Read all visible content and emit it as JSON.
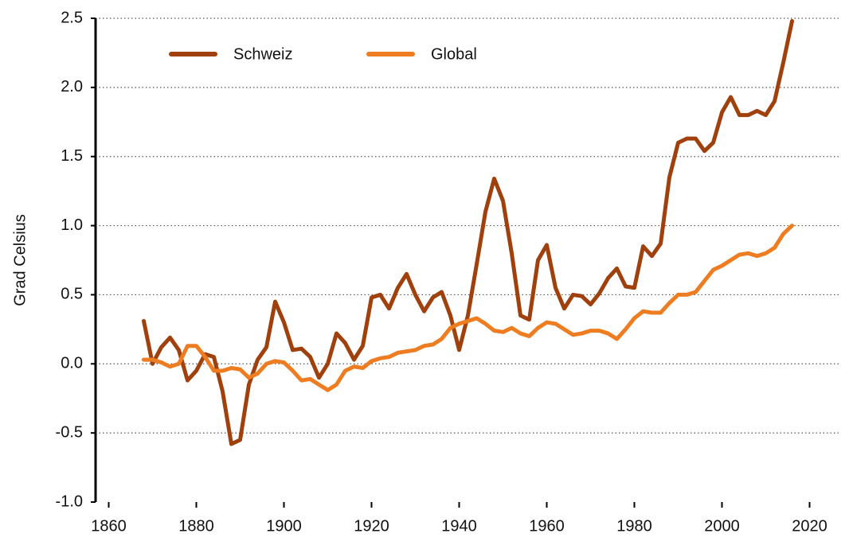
{
  "chart_data": {
    "type": "line",
    "ylabel": "Grad Celsius",
    "x": [
      1868,
      1870,
      1872,
      1874,
      1876,
      1878,
      1880,
      1882,
      1884,
      1886,
      1888,
      1890,
      1892,
      1894,
      1896,
      1898,
      1900,
      1902,
      1904,
      1906,
      1908,
      1910,
      1912,
      1914,
      1916,
      1918,
      1920,
      1922,
      1924,
      1926,
      1928,
      1930,
      1932,
      1934,
      1936,
      1938,
      1940,
      1942,
      1944,
      1946,
      1948,
      1950,
      1952,
      1954,
      1956,
      1958,
      1960,
      1962,
      1964,
      1966,
      1968,
      1970,
      1972,
      1974,
      1976,
      1978,
      1980,
      1982,
      1984,
      1986,
      1988,
      1990,
      1992,
      1994,
      1996,
      1998,
      2000,
      2002,
      2004,
      2006,
      2008,
      2010,
      2012,
      2014,
      2016
    ],
    "series": [
      {
        "name": "Schweiz",
        "color": "#a0410d",
        "values": [
          0.31,
          0.0,
          0.12,
          0.19,
          0.1,
          -0.12,
          -0.05,
          0.07,
          0.05,
          -0.2,
          -0.58,
          -0.55,
          -0.15,
          0.03,
          0.12,
          0.45,
          0.3,
          0.1,
          0.11,
          0.05,
          -0.1,
          0.0,
          0.22,
          0.15,
          0.03,
          0.13,
          0.48,
          0.5,
          0.4,
          0.55,
          0.65,
          0.5,
          0.38,
          0.48,
          0.52,
          0.35,
          0.1,
          0.35,
          0.72,
          1.1,
          1.34,
          1.18,
          0.8,
          0.35,
          0.32,
          0.75,
          0.86,
          0.55,
          0.4,
          0.5,
          0.49,
          0.43,
          0.51,
          0.62,
          0.69,
          0.56,
          0.55,
          0.85,
          0.78,
          0.87,
          1.35,
          1.6,
          1.63,
          1.63,
          1.54,
          1.6,
          1.82,
          1.93,
          1.8,
          1.8,
          1.83,
          1.8,
          1.9,
          2.18,
          2.48
        ]
      },
      {
        "name": "Global",
        "color": "#ee7d22",
        "values": [
          0.03,
          0.03,
          0.01,
          -0.02,
          0.0,
          0.13,
          0.13,
          0.05,
          -0.05,
          -0.05,
          -0.03,
          -0.04,
          -0.1,
          -0.07,
          0.0,
          0.02,
          0.01,
          -0.05,
          -0.12,
          -0.11,
          -0.15,
          -0.19,
          -0.15,
          -0.05,
          -0.02,
          -0.03,
          0.02,
          0.04,
          0.05,
          0.08,
          0.09,
          0.1,
          0.13,
          0.14,
          0.18,
          0.26,
          0.29,
          0.31,
          0.33,
          0.29,
          0.24,
          0.23,
          0.26,
          0.22,
          0.2,
          0.26,
          0.3,
          0.29,
          0.25,
          0.21,
          0.22,
          0.24,
          0.24,
          0.22,
          0.18,
          0.25,
          0.33,
          0.38,
          0.37,
          0.37,
          0.44,
          0.5,
          0.5,
          0.52,
          0.6,
          0.68,
          0.71,
          0.75,
          0.79,
          0.8,
          0.78,
          0.8,
          0.84,
          0.94,
          1.0
        ]
      }
    ],
    "xlim": [
      1857,
      2027
    ],
    "xticks": [
      1860,
      1880,
      1900,
      1920,
      1940,
      1960,
      1980,
      2000,
      2020
    ],
    "ylim": [
      -1,
      2.5
    ],
    "yticks": [
      {
        "value": -1,
        "label": "-1.0"
      },
      -0.5,
      {
        "value": 0,
        "label": "0.0"
      },
      0.5,
      {
        "value": 1,
        "label": "1.0"
      },
      1.5,
      {
        "value": 2,
        "label": "2.0"
      },
      2.5
    ],
    "grid": true,
    "legend": "top-left"
  }
}
